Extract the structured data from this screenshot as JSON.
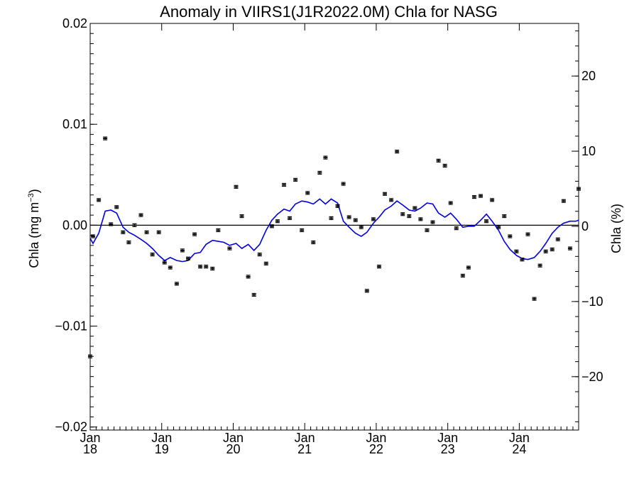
{
  "chart_data": {
    "type": "scatter",
    "title": "Anomaly in VIIRS1(J1R2022.0M) Chla for NASG",
    "ylabel_left_main": "Chla (mg m",
    "ylabel_left_sup": "−3",
    "ylabel_left_close": ")",
    "ylabel_right": "Chla (%)",
    "x_axis": {
      "unit": "year",
      "range": [
        2018.0,
        2024.83
      ],
      "ticks": [
        {
          "pos": 2018,
          "top": "Jan",
          "bottom": "18"
        },
        {
          "pos": 2019,
          "top": "Jan",
          "bottom": "19"
        },
        {
          "pos": 2020,
          "top": "Jan",
          "bottom": "20"
        },
        {
          "pos": 2021,
          "top": "Jan",
          "bottom": "21"
        },
        {
          "pos": 2022,
          "top": "Jan",
          "bottom": "22"
        },
        {
          "pos": 2023,
          "top": "Jan",
          "bottom": "23"
        },
        {
          "pos": 2024,
          "top": "Jan",
          "bottom": "24"
        }
      ]
    },
    "y_left": {
      "range": [
        -0.0203,
        0.02
      ],
      "ticks": [
        {
          "v": 0.02,
          "label": "0.02"
        },
        {
          "v": 0.01,
          "label": "0.01"
        },
        {
          "v": 0.0,
          "label": "0.00"
        },
        {
          "v": -0.01,
          "label": "−0.01"
        },
        {
          "v": -0.02,
          "label": "−0.02"
        }
      ]
    },
    "y_right": {
      "range": [
        -27.1,
        27.0
      ],
      "ticks": [
        {
          "v": 20,
          "label": "20"
        },
        {
          "v": 10,
          "label": "10"
        },
        {
          "v": 0,
          "label": "0"
        },
        {
          "v": -10,
          "label": "−10"
        },
        {
          "v": -20,
          "label": "−20"
        }
      ]
    },
    "zero_line": 0.0,
    "series": [
      {
        "kind": "points_with_errorbars",
        "color": "#000000",
        "x": [
          2018.0,
          2018.04,
          2018.12,
          2018.21,
          2018.29,
          2018.37,
          2018.46,
          2018.54,
          2018.62,
          2018.71,
          2018.79,
          2018.87,
          2018.96,
          2019.04,
          2019.12,
          2019.21,
          2019.29,
          2019.37,
          2019.46,
          2019.54,
          2019.62,
          2019.71,
          2019.79,
          2019.95,
          2020.04,
          2020.12,
          2020.21,
          2020.29,
          2020.37,
          2020.46,
          2020.54,
          2020.62,
          2020.71,
          2020.79,
          2020.87,
          2020.96,
          2021.04,
          2021.12,
          2021.21,
          2021.29,
          2021.37,
          2021.46,
          2021.54,
          2021.62,
          2021.71,
          2021.79,
          2021.87,
          2021.96,
          2022.04,
          2022.12,
          2022.21,
          2022.29,
          2022.37,
          2022.46,
          2022.54,
          2022.62,
          2022.71,
          2022.79,
          2022.87,
          2022.96,
          2023.04,
          2023.12,
          2023.21,
          2023.29,
          2023.37,
          2023.46,
          2023.54,
          2023.62,
          2023.71,
          2023.79,
          2023.87,
          2023.96,
          2024.04,
          2024.12,
          2024.21,
          2024.29,
          2024.37,
          2024.46,
          2024.54,
          2024.62,
          2024.71,
          2024.83
        ],
        "y": [
          -0.013,
          -0.0011,
          0.0025,
          0.0086,
          0.0001,
          0.0018,
          -0.0007,
          -0.0017,
          0.0,
          0.001,
          -0.0007,
          -0.0029,
          -0.0007,
          -0.0037,
          -0.0042,
          -0.0058,
          -0.0025,
          -0.0033,
          -0.0009,
          -0.0041,
          -0.0041,
          -0.0043,
          -0.0005,
          -0.0023,
          0.0038,
          0.0009,
          -0.0051,
          -0.0069,
          -0.0029,
          -0.0038,
          -0.0001,
          0.0004,
          0.004,
          0.0007,
          0.0045,
          -0.0005,
          0.0032,
          -0.0017,
          0.0052,
          0.0067,
          0.0007,
          0.0019,
          0.0041,
          0.0008,
          0.0005,
          -0.0002,
          -0.0065,
          0.0006,
          -0.0041,
          0.0031,
          0.0025,
          0.0073,
          0.0011,
          0.0009,
          0.0017,
          0.0006,
          -0.0005,
          0.0003,
          0.0064,
          0.0059,
          0.0022,
          -0.0003,
          -0.005,
          -0.0042,
          0.0028,
          0.0029,
          0.0004,
          0.0025,
          -0.0002,
          0.0009,
          -0.0011,
          -0.0026,
          -0.0034,
          -0.0009,
          -0.0073,
          -0.004,
          -0.0026,
          -0.0024,
          -0.0014,
          0.0024,
          -0.0023,
          0.0036
        ]
      },
      {
        "kind": "line",
        "color": "#0000dd",
        "x": [
          2018.0,
          2018.04,
          2018.12,
          2018.21,
          2018.29,
          2018.37,
          2018.46,
          2018.54,
          2018.62,
          2018.71,
          2018.79,
          2018.87,
          2018.96,
          2019.04,
          2019.12,
          2019.21,
          2019.29,
          2019.37,
          2019.46,
          2019.54,
          2019.62,
          2019.71,
          2019.79,
          2019.87,
          2019.95,
          2020.04,
          2020.12,
          2020.21,
          2020.29,
          2020.37,
          2020.46,
          2020.54,
          2020.62,
          2020.71,
          2020.79,
          2020.87,
          2020.96,
          2021.04,
          2021.12,
          2021.21,
          2021.29,
          2021.37,
          2021.46,
          2021.54,
          2021.62,
          2021.71,
          2021.79,
          2021.87,
          2021.96,
          2022.04,
          2022.12,
          2022.21,
          2022.29,
          2022.37,
          2022.46,
          2022.54,
          2022.62,
          2022.71,
          2022.79,
          2022.87,
          2022.96,
          2023.04,
          2023.12,
          2023.21,
          2023.29,
          2023.37,
          2023.46,
          2023.54,
          2023.62,
          2023.71,
          2023.79,
          2023.87,
          2023.96,
          2024.04,
          2024.12,
          2024.21,
          2024.29,
          2024.37,
          2024.46,
          2024.54,
          2024.62,
          2024.71,
          2024.79,
          2024.83
        ],
        "y": [
          -0.0013,
          -0.0018,
          -0.0008,
          0.0014,
          0.0015,
          0.0012,
          -0.0002,
          -0.0007,
          -0.001,
          -0.0014,
          -0.0018,
          -0.0023,
          -0.003,
          -0.0035,
          -0.0032,
          -0.0035,
          -0.0036,
          -0.0035,
          -0.0028,
          -0.0027,
          -0.0019,
          -0.0015,
          -0.0016,
          -0.0017,
          -0.002,
          -0.0018,
          -0.0023,
          -0.0019,
          -0.0025,
          -0.0019,
          -0.0005,
          0.0005,
          0.0011,
          0.0016,
          0.0014,
          0.0021,
          0.0024,
          0.0023,
          0.0021,
          0.0026,
          0.0021,
          0.0026,
          0.0022,
          0.0004,
          -0.0002,
          -0.0008,
          -0.0011,
          -0.0007,
          0.0002,
          0.0008,
          0.0015,
          0.0019,
          0.0024,
          0.002,
          0.0015,
          0.0014,
          0.0017,
          0.0022,
          0.0021,
          0.0012,
          0.0008,
          0.0012,
          0.0006,
          -0.0002,
          -0.0001,
          -0.0001,
          0.0005,
          0.0011,
          0.0004,
          -0.0005,
          -0.0016,
          -0.0024,
          -0.003,
          -0.0033,
          -0.0034,
          -0.0032,
          -0.0026,
          -0.0018,
          -0.0008,
          -0.0002,
          0.0002,
          0.0004,
          0.0004,
          0.0005
        ]
      }
    ],
    "grid": false,
    "legend": "none"
  }
}
